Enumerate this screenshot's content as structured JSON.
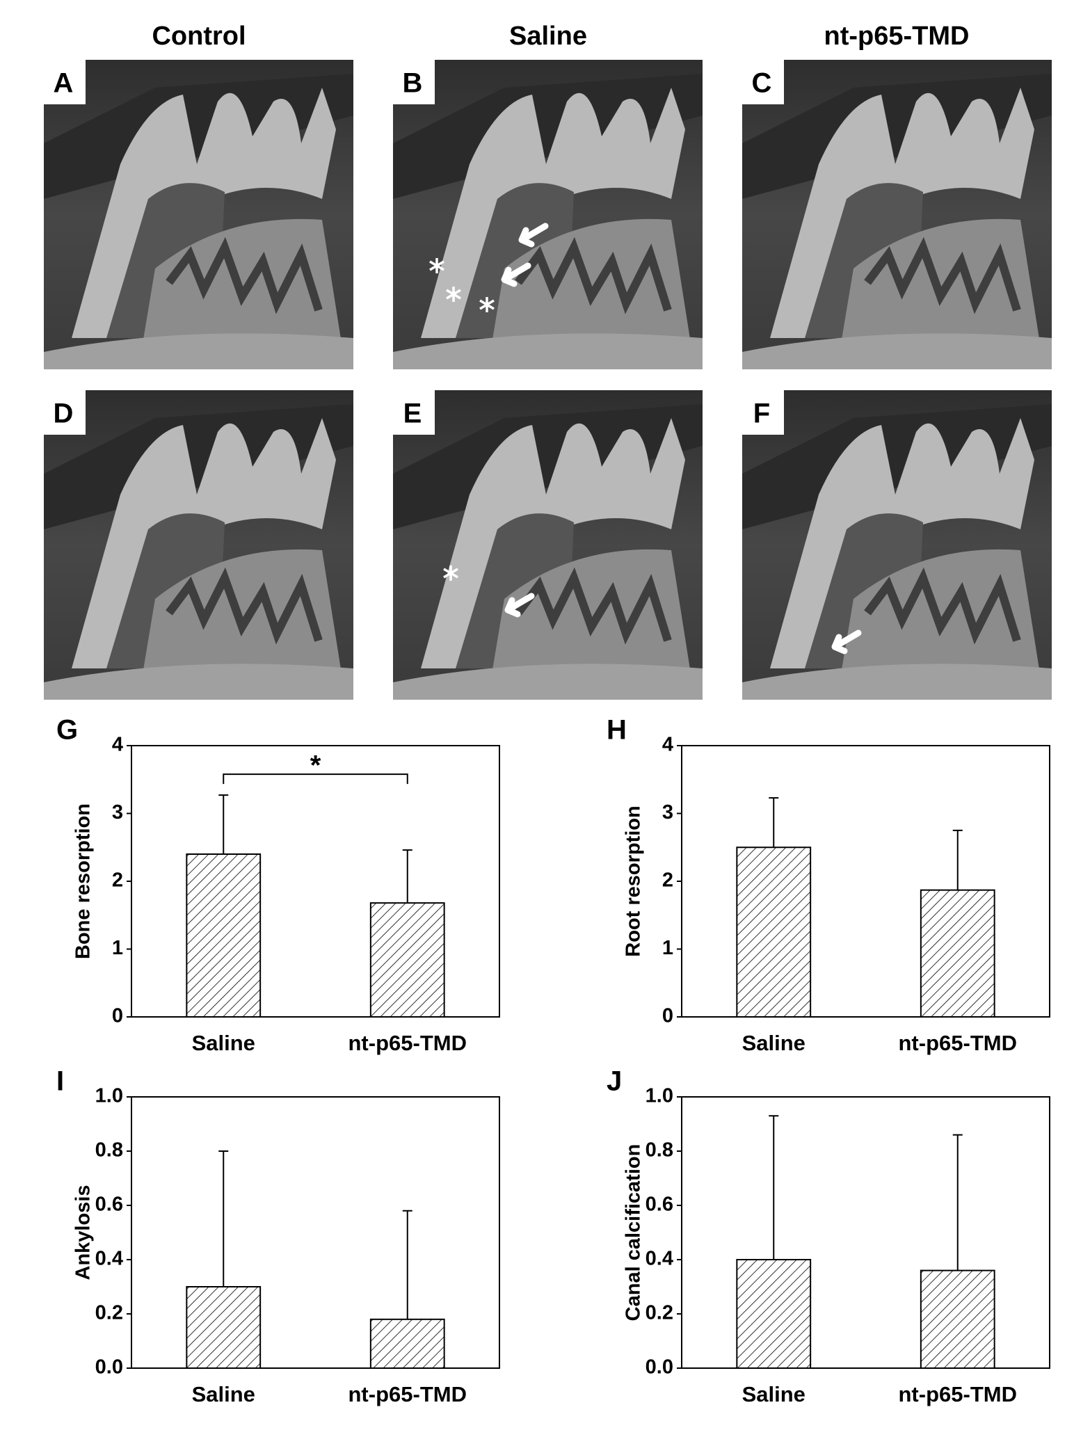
{
  "figure": {
    "columns": [
      "Control",
      "Saline",
      "nt-p65-TMD"
    ],
    "panels": [
      "A",
      "B",
      "C",
      "D",
      "E",
      "F"
    ]
  },
  "chart_data": [
    {
      "type": "bar",
      "panel": "G",
      "ylabel": "Bone resorption",
      "categories": [
        "Saline",
        "nt-p65-TMD"
      ],
      "values": [
        2.4,
        1.68
      ],
      "errors": [
        0.87,
        0.78
      ],
      "color": "#000000",
      "ylim": [
        0,
        4
      ],
      "yticks": [
        0,
        1,
        2,
        3,
        4
      ],
      "significance": "*"
    },
    {
      "type": "bar",
      "panel": "H",
      "ylabel": "Root resorption",
      "categories": [
        "Saline",
        "nt-p65-TMD"
      ],
      "values": [
        2.5,
        1.87
      ],
      "errors": [
        0.73,
        0.88
      ],
      "color": "#000000",
      "ylim": [
        0,
        4
      ],
      "yticks": [
        0,
        1,
        2,
        3,
        4
      ]
    },
    {
      "type": "bar",
      "panel": "I",
      "ylabel": "Ankylosis",
      "categories": [
        "Saline",
        "nt-p65-TMD"
      ],
      "values": [
        0.3,
        0.18
      ],
      "errors": [
        0.5,
        0.4
      ],
      "color": "#000000",
      "ylim": [
        0,
        1
      ],
      "yticks": [
        {
          "value": 0,
          "label": "0.0"
        },
        {
          "value": 0.2,
          "label": "0.2"
        },
        {
          "value": 0.4,
          "label": "0.4"
        },
        {
          "value": 0.6,
          "label": "0.6"
        },
        {
          "value": 0.8,
          "label": "0.8"
        },
        {
          "value": 1,
          "label": "1.0"
        }
      ]
    },
    {
      "type": "bar",
      "panel": "J",
      "ylabel": "Canal calcification",
      "categories": [
        "Saline",
        "nt-p65-TMD"
      ],
      "values": [
        0.4,
        0.36
      ],
      "errors": [
        0.53,
        0.5
      ],
      "color": "#000000",
      "ylim": [
        0,
        1
      ],
      "yticks": [
        {
          "value": 0,
          "label": "0.0"
        },
        {
          "value": 0.2,
          "label": "0.2"
        },
        {
          "value": 0.4,
          "label": "0.4"
        },
        {
          "value": 0.6,
          "label": "0.6"
        },
        {
          "value": 0.8,
          "label": "0.8"
        },
        {
          "value": 1,
          "label": "1.0"
        }
      ]
    }
  ]
}
